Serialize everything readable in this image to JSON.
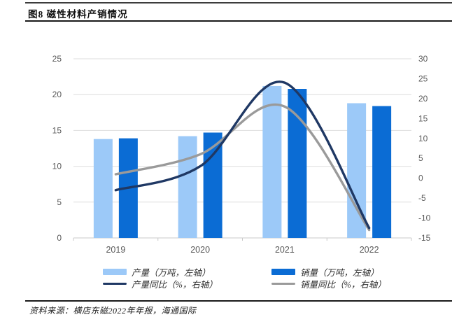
{
  "header": {
    "title": "图8  磁性材料产销情况"
  },
  "source": {
    "text": "资料来源：横店东磁2022年年报，海通国际"
  },
  "chart_data": {
    "type": "bar+line combo",
    "title": "磁性材料产销情况",
    "categories": [
      "2019",
      "2020",
      "2021",
      "2022"
    ],
    "series": [
      {
        "name": "产量（万吨，左轴）",
        "type": "bar",
        "axis": "left",
        "color": "#9CC9F8",
        "values": [
          13.8,
          14.2,
          21.2,
          18.8
        ]
      },
      {
        "name": "销量（万吨，左轴）",
        "type": "bar",
        "axis": "left",
        "color": "#0B6CD4",
        "values": [
          13.9,
          14.7,
          20.8,
          18.4
        ]
      },
      {
        "name": "产量同比（%，右轴）",
        "type": "line",
        "axis": "right",
        "color": "#1F3864",
        "values": [
          -3,
          3,
          24,
          -12.5
        ]
      },
      {
        "name": "销量同比（%，右轴）",
        "type": "line",
        "axis": "right",
        "color": "#9A9A9A",
        "values": [
          1,
          6,
          18,
          -13
        ]
      }
    ],
    "left_axis": {
      "min": 0,
      "max": 25,
      "step": 5,
      "ticks": [
        "0",
        "5",
        "10",
        "15",
        "20",
        "25"
      ]
    },
    "right_axis": {
      "min": -15,
      "max": 30,
      "step": 5,
      "ticks": [
        "-15",
        "-10",
        "-5",
        "0",
        "5",
        "10",
        "15",
        "20",
        "25",
        "30"
      ]
    },
    "grid": "horizontal",
    "legend_position": "bottom",
    "gridline_color": "#DEDEDE",
    "axis_line_color": "#C9C9C9",
    "tick_text_color": "#595959"
  }
}
